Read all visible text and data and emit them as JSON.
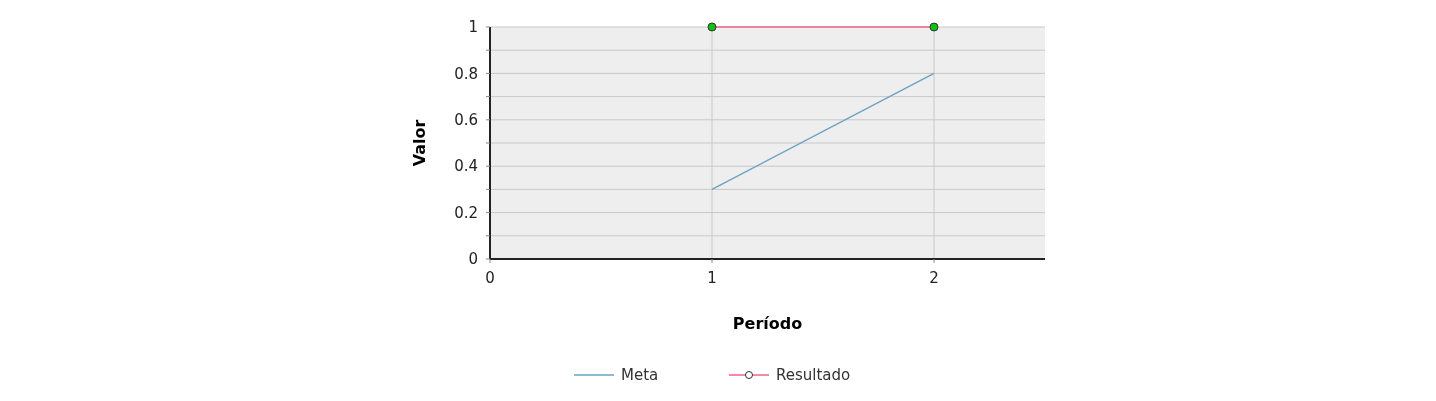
{
  "chart_data": {
    "type": "line",
    "xlabel": "Período",
    "ylabel": "Valor",
    "xlim": [
      0,
      2.5
    ],
    "xticks": [
      0,
      1,
      2
    ],
    "ylim": [
      0,
      1
    ],
    "yticks": [
      0,
      {
        "value": 0.1,
        "label": null
      },
      0.2,
      {
        "value": 0.3,
        "label": null
      },
      0.4,
      {
        "value": 0.5,
        "label": null
      },
      0.6,
      {
        "value": 0.7,
        "label": null
      },
      0.8,
      {
        "value": 0.9,
        "label": null
      },
      1
    ],
    "grid": true,
    "legend": "bottom",
    "x": [
      1,
      2
    ],
    "series": [
      {
        "name": "Meta",
        "color": "#6aa3c3",
        "values": [
          0.3,
          0.8
        ],
        "marker": "none"
      },
      {
        "name": "Resultado",
        "color": "#ee6688",
        "values": [
          1,
          1
        ],
        "marker": "circle"
      }
    ]
  }
}
